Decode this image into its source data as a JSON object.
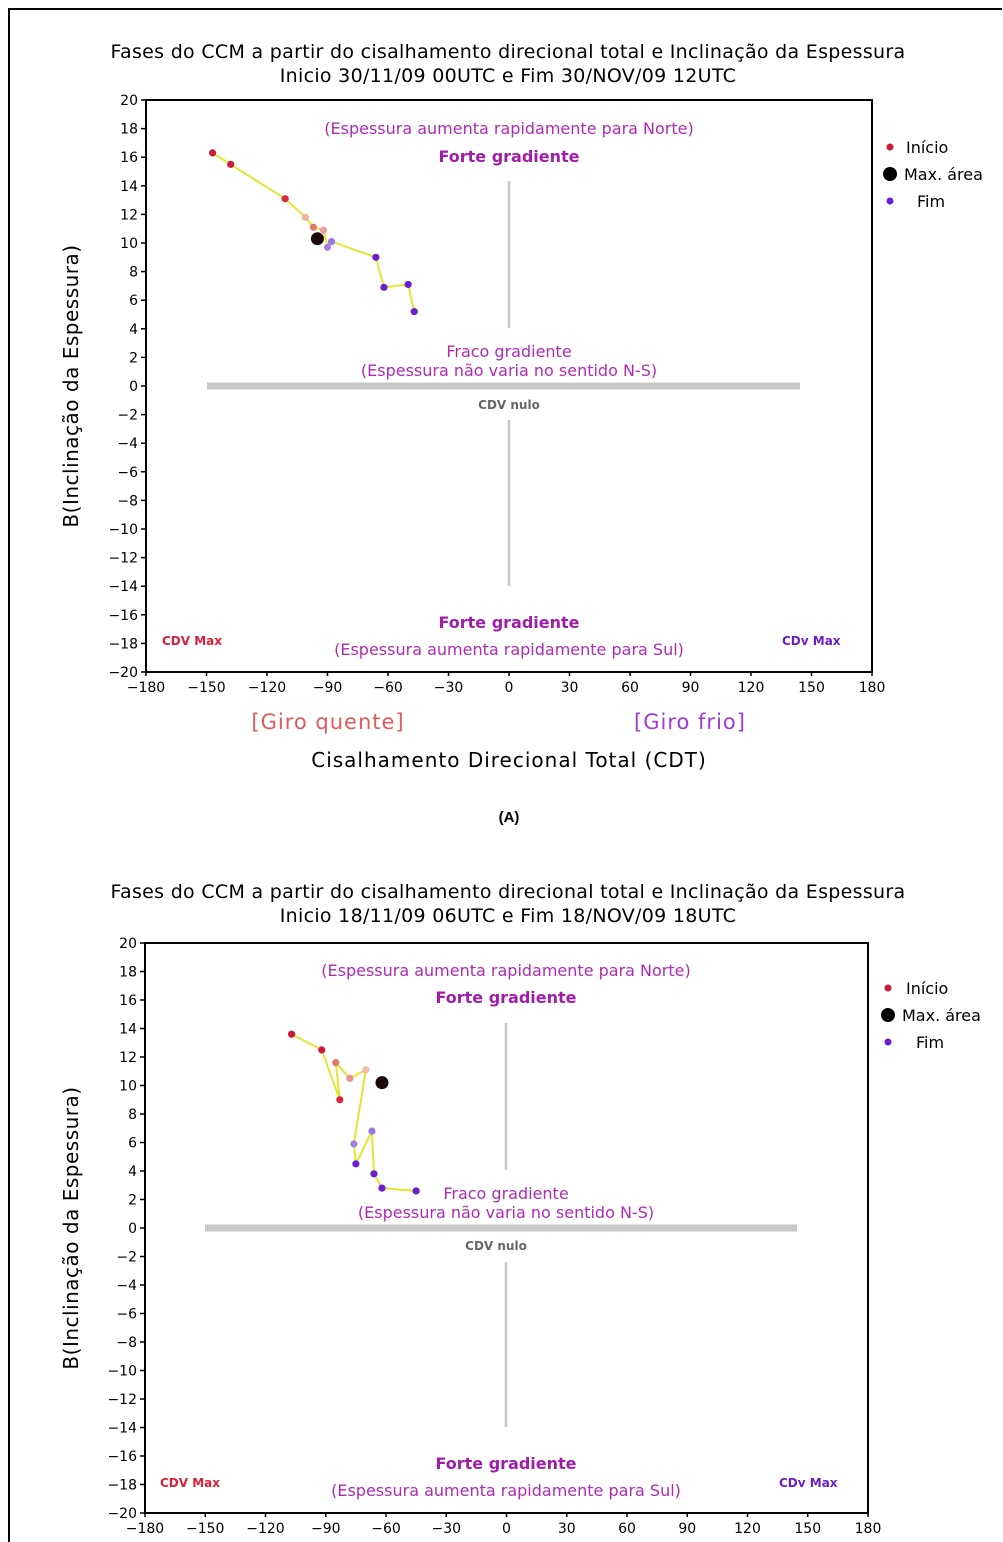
{
  "chart_data": [
    {
      "type": "scatter",
      "title": "Fases do CCM a partir do cisalhamento direcional total e Inclinação da Espessura",
      "subtitle": "Inicio 30/11/09 00UTC e Fim 30/NOV/09 12UTC",
      "xlabel": "Cisalhamento Direcional Total (CDT)",
      "ylabel": "B(Inclinação da Espessura)",
      "xlim": [
        -180,
        180
      ],
      "ylim": [
        -20,
        20
      ],
      "xticks": [
        -180,
        -150,
        -120,
        -90,
        -60,
        -30,
        0,
        30,
        60,
        90,
        120,
        150,
        180
      ],
      "yticks": [
        -20,
        -18,
        -16,
        -14,
        -12,
        -10,
        -8,
        -6,
        -4,
        -2,
        0,
        2,
        4,
        6,
        8,
        10,
        12,
        14,
        16,
        18,
        20
      ],
      "x": [
        -147,
        -138,
        -111,
        -101,
        -97,
        -92,
        -90,
        -88,
        -66,
        -62,
        -50,
        -47
      ],
      "y": [
        16.3,
        15.5,
        13.1,
        11.8,
        11.1,
        10.9,
        9.7,
        10.1,
        9.0,
        6.9,
        7.1,
        5.2
      ],
      "max_area_point": {
        "x": -95,
        "y": 10.3
      },
      "annotations": {
        "top_note": "(Espessura aumenta rapidamente para Norte)",
        "top_strong": "Forte gradiente",
        "weak": "Fraco gradiente",
        "weak_note": "(Espessura não varia no sentido N-S)",
        "null_label": "CDV nulo",
        "bottom_strong": "Forte gradiente",
        "bottom_note": "(Espessura aumenta rapidamente para Sul)",
        "cdv_left": "CDV Max",
        "cdv_right": "CDv Max",
        "giro_quente": "[Giro quente]",
        "giro_frio": "[Giro frio]"
      },
      "legend": [
        "Início",
        "Max. área",
        "Fim"
      ],
      "legend_placement": "top-right, outside plot",
      "panel_label": "(A)"
    },
    {
      "type": "scatter",
      "title": "Fases do CCM a partir do cisalhamento direcional total e Inclinação da Espessura",
      "subtitle": "Inicio 18/11/09 06UTC e Fim 18/NOV/09 18UTC",
      "xlabel": "",
      "ylabel": "B(Inclinação da Espessura)",
      "xlim": [
        -180,
        180
      ],
      "ylim": [
        -20,
        20
      ],
      "xticks": [
        -180,
        -150,
        -120,
        -90,
        -60,
        -30,
        0,
        30,
        60,
        90,
        120,
        150,
        180
      ],
      "yticks": [
        -20,
        -18,
        -16,
        -14,
        -12,
        -10,
        -8,
        -6,
        -4,
        -2,
        0,
        2,
        4,
        6,
        8,
        10,
        12,
        14,
        16,
        18,
        20
      ],
      "x": [
        -107,
        -92,
        -83,
        -85,
        -78,
        -70,
        -76,
        -75,
        -67,
        -66,
        -62,
        -45
      ],
      "y": [
        13.6,
        12.5,
        9.0,
        11.6,
        10.5,
        11.1,
        5.9,
        4.5,
        6.8,
        3.8,
        2.8,
        2.6
      ],
      "max_area_point": {
        "x": -62,
        "y": 10.2
      },
      "annotations": {
        "top_note": "(Espessura aumenta rapidamente para Norte)",
        "top_strong": "Forte gradiente",
        "weak": "Fraco gradiente",
        "weak_note": "(Espessura não varia no sentido N-S)",
        "null_label": "CDV nulo",
        "bottom_strong": "Forte gradiente",
        "bottom_note": "(Espessura aumenta rapidamente para Sul)",
        "cdv_left": "CDV Max",
        "cdv_right": "CDv Max"
      },
      "legend": [
        "Início",
        "Max. área",
        "Fim"
      ],
      "legend_placement": "top-right, outside plot"
    }
  ],
  "colors": {
    "path_line": "#e3e632",
    "point_colors": [
      "#cc1a3a",
      "#cc1a3a",
      "#d9263a",
      "#f0b0a0",
      "#e37a68",
      "#e8a0a0",
      "#a580e0",
      "#9b78e6",
      "#6a1ed0",
      "#6a1ed0",
      "#6a1ed0",
      "#6a1ed0"
    ],
    "point_colors_b": [
      "#cc1a3a",
      "#cc1a3a",
      "#d9263a",
      "#e37a68",
      "#e8908a",
      "#f0b8a8",
      "#a580e0",
      "#6a1ed0",
      "#9b78e6",
      "#6a1ed0",
      "#6a1ed0",
      "#6a1ed0"
    ],
    "start": "#cc1a3a",
    "max_area": "#000000",
    "end": "#6a1ed0",
    "axes_gray": "#bbbbbb"
  }
}
